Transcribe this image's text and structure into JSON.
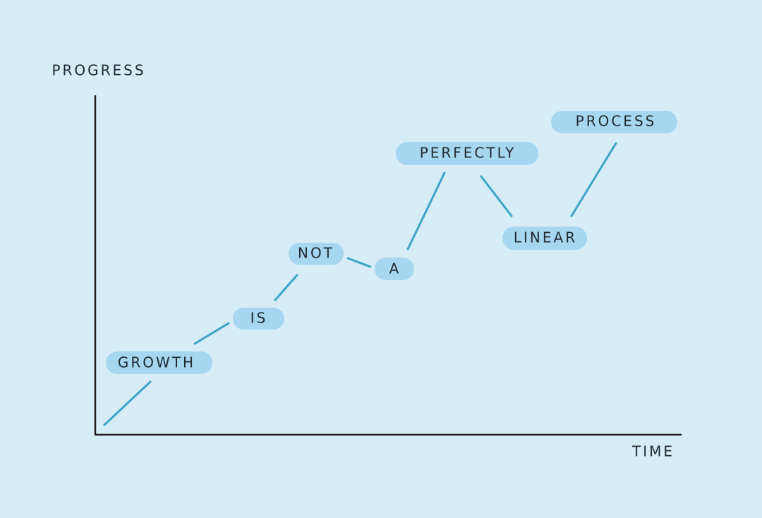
{
  "axes": {
    "y_label": "PROGRESS",
    "x_label": "TIME"
  },
  "nodes": [
    {
      "label": "GROWTH"
    },
    {
      "label": "IS"
    },
    {
      "label": "NOT"
    },
    {
      "label": "A"
    },
    {
      "label": "PERFECTLY"
    },
    {
      "label": "LINEAR"
    },
    {
      "label": "PROCESS"
    }
  ]
}
